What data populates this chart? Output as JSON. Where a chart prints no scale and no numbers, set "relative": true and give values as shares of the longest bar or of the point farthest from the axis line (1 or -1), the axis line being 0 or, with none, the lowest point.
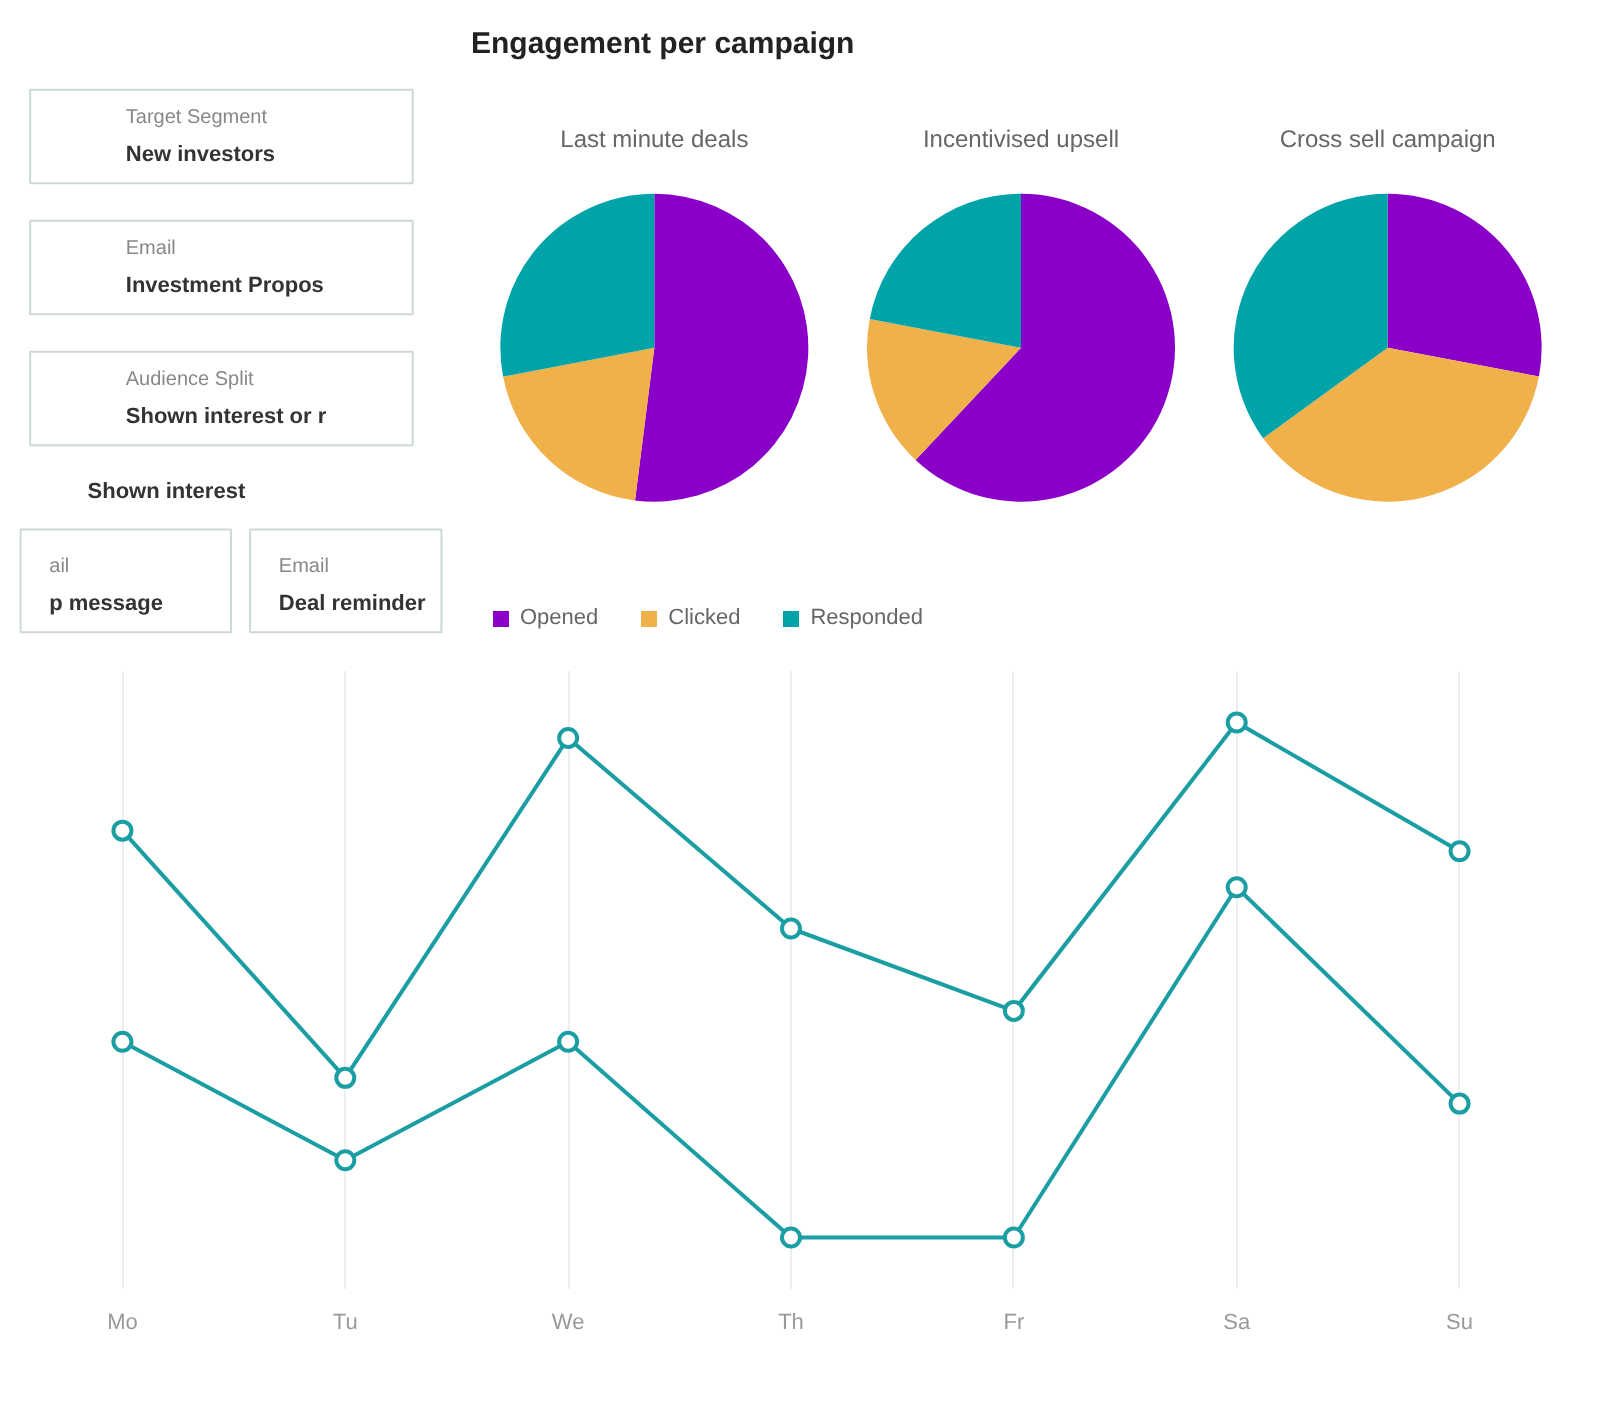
{
  "chart_data": [
    {
      "type": "pie",
      "title": "Engagement per campaign",
      "categories": [
        "Opened",
        "Clicked",
        "Responded"
      ],
      "colors": [
        "#8a00c8",
        "#f0b04a",
        "#00a3a8"
      ],
      "legend": "bottom left",
      "series": [
        {
          "name": "Last minute deals",
          "values": [
            52,
            20,
            28
          ]
        },
        {
          "name": "Incentivised upsell",
          "values": [
            62,
            16,
            22
          ]
        },
        {
          "name": "Cross sell campaign",
          "values": [
            28,
            37,
            35
          ]
        }
      ]
    },
    {
      "type": "other",
      "annotations": [
        "Target Segment",
        "New investors",
        "Email",
        "Investment Propos",
        "Audience Split",
        "Shown interest or r",
        "Shown interest",
        "ail",
        "p message",
        "Email",
        "Deal reminder"
      ]
    },
    {
      "type": "line",
      "categories": [
        "Mo",
        "Tu",
        "We",
        "Th",
        "Fr",
        "Sa",
        "Su"
      ],
      "relative": true,
      "marker": "circle",
      "grid": "x",
      "series": [
        {
          "color": "#1a9ea3",
          "values": [
            0.79,
            0.31,
            0.97,
            0.6,
            0.44,
            1,
            0.75
          ]
        },
        {
          "color": "#1a9ea3",
          "values": [
            0.38,
            0.15,
            0.38,
            0,
            0,
            0.68,
            0.26
          ]
        }
      ]
    }
  ]
}
